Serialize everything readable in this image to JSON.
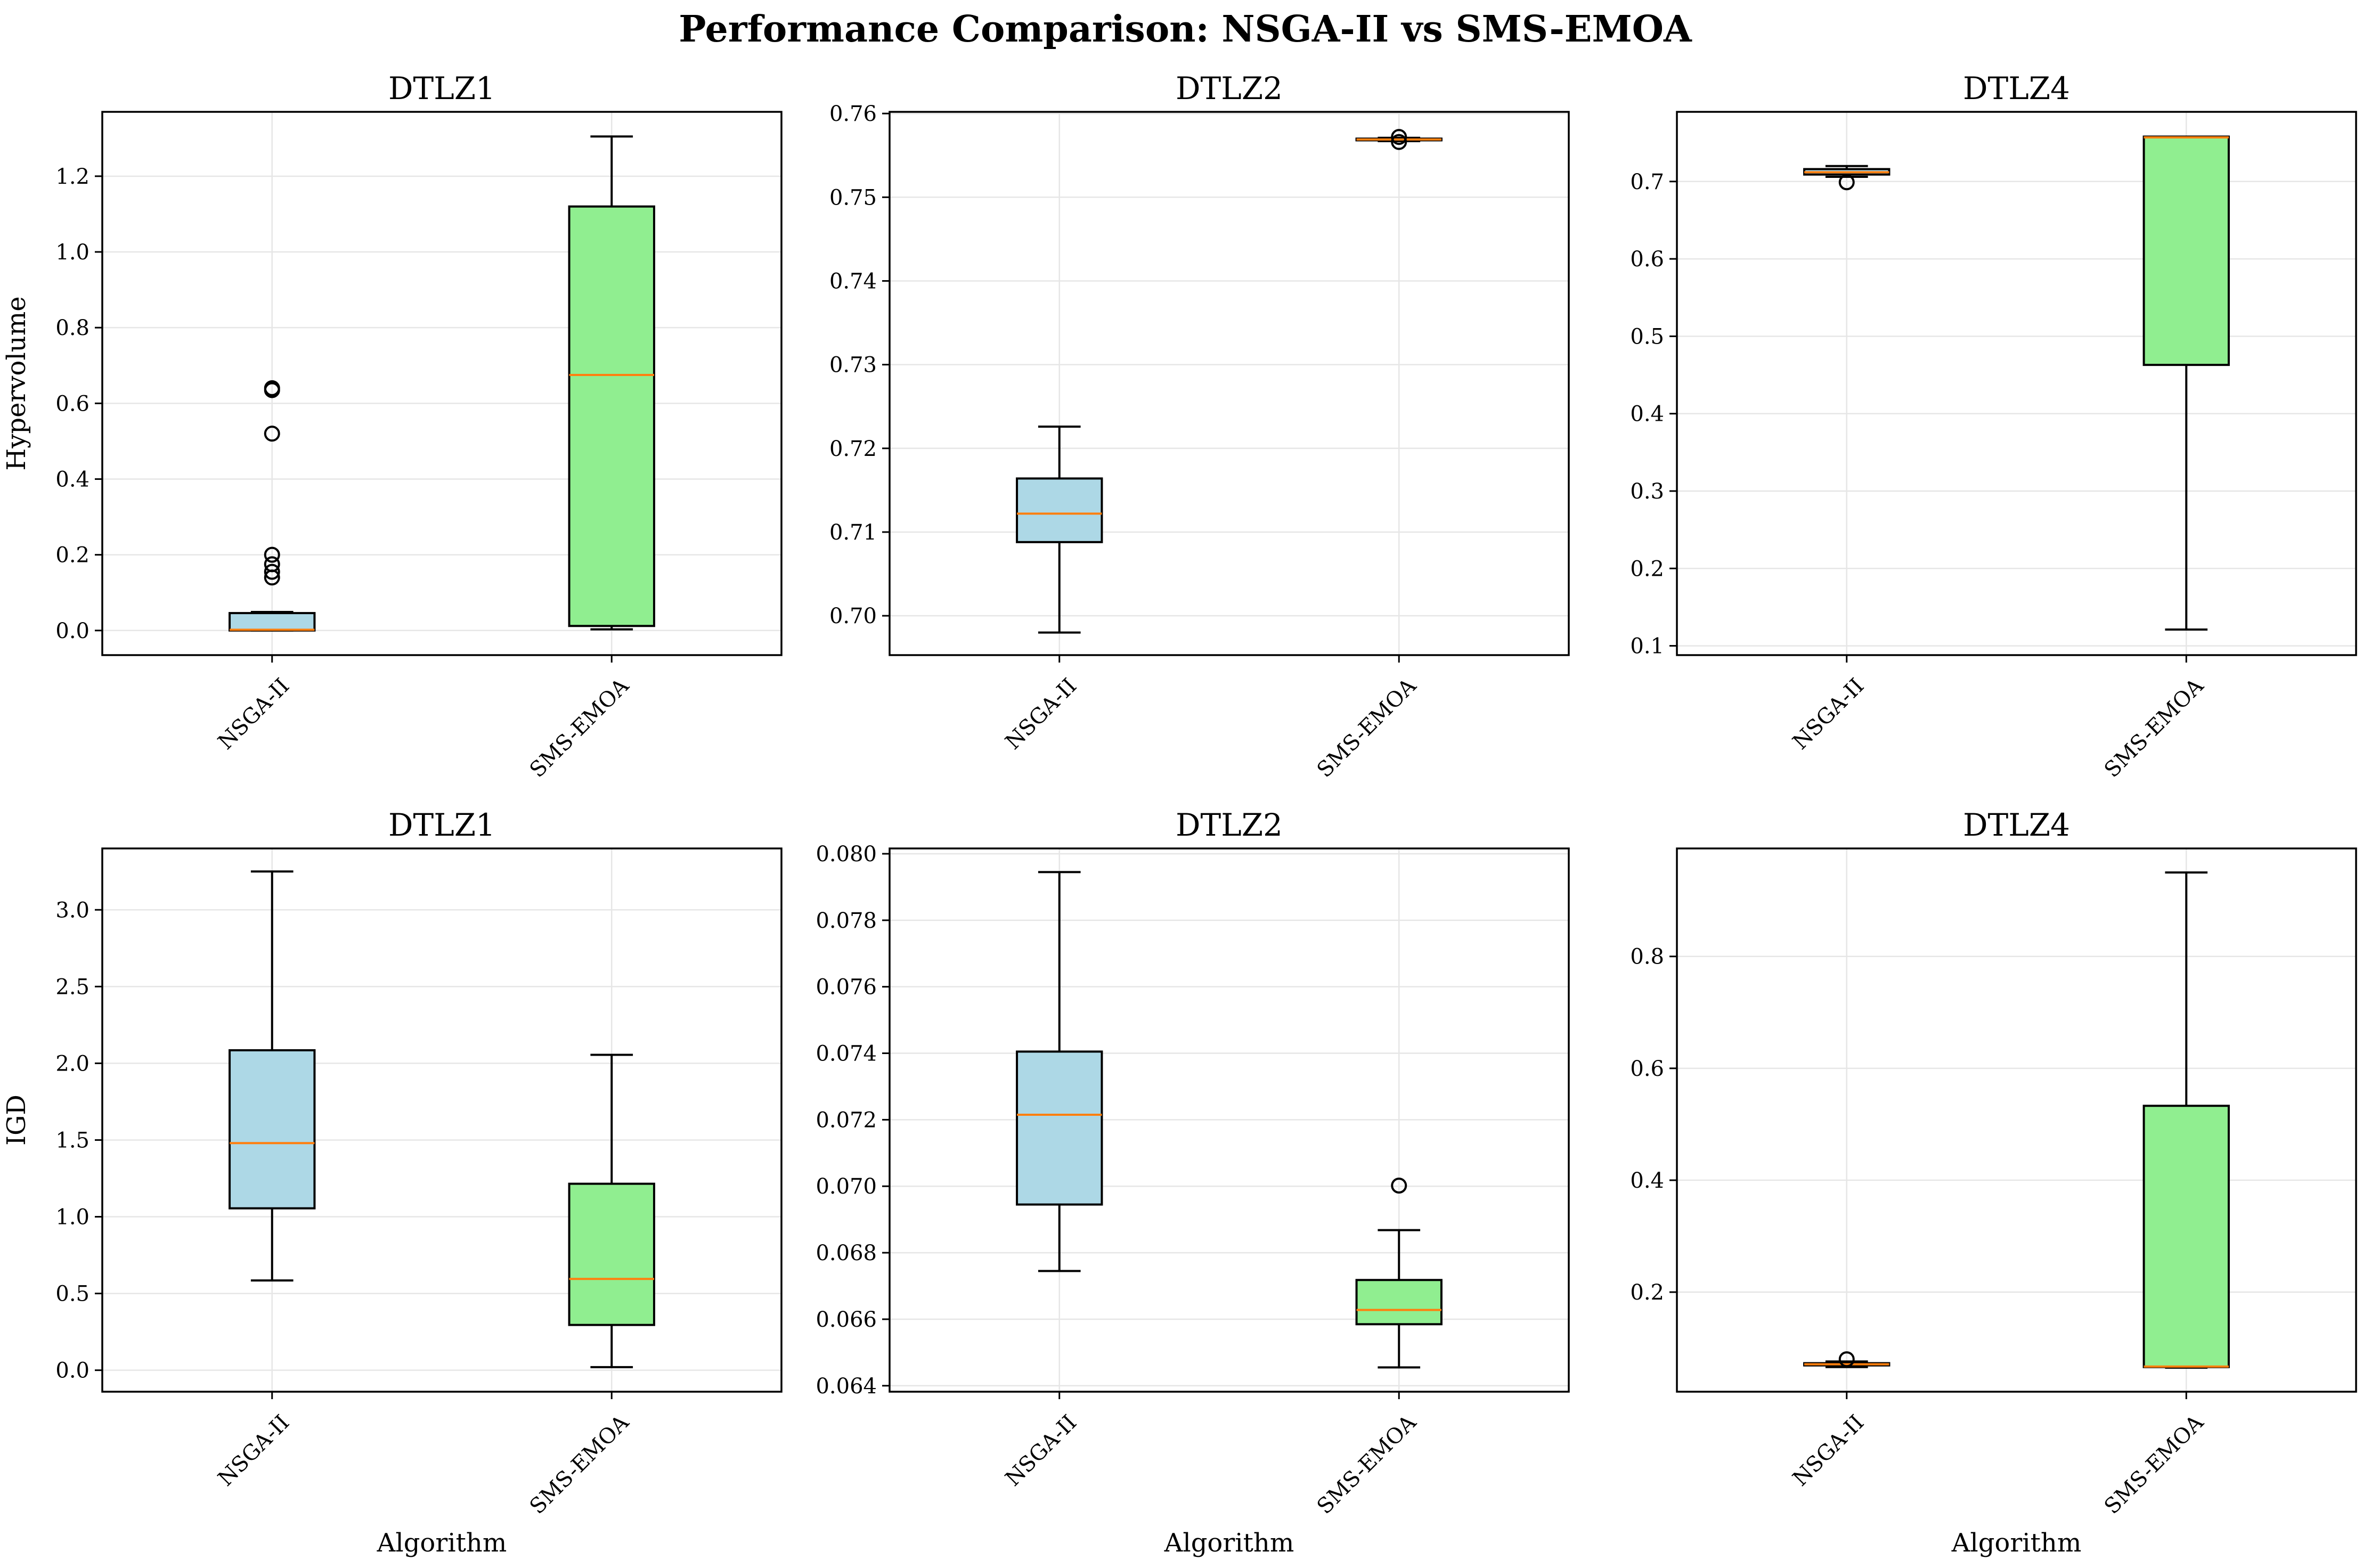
{
  "title": "Performance Comparison: NSGA-II vs SMS-EMOA",
  "colors": {
    "NSGA-II": "#add8e6",
    "SMS-EMOA": "#90ee90",
    "median": "#ff7f0e"
  },
  "chart_data": [
    {
      "type": "box",
      "title": "DTLZ1",
      "ylabel": "Hypervolume",
      "xlabel": "",
      "categories": [
        "NSGA-II",
        "SMS-EMOA"
      ],
      "ylim": [
        -0.065,
        1.37
      ],
      "yticks": [
        0.0,
        0.2,
        0.4,
        0.6,
        0.8,
        1.0,
        1.2
      ],
      "ytick_decimals": 1,
      "boxes": [
        {
          "name": "NSGA-II",
          "whislo": 0.0,
          "q1": 0.0,
          "med": 0.002,
          "q3": 0.046,
          "whishi": 0.049,
          "fliers": [
            0.14,
            0.155,
            0.175,
            0.2,
            0.52,
            0.635,
            0.64
          ]
        },
        {
          "name": "SMS-EMOA",
          "whislo": 0.003,
          "q1": 0.012,
          "med": 0.675,
          "q3": 1.12,
          "whishi": 1.305,
          "fliers": []
        }
      ]
    },
    {
      "type": "box",
      "title": "DTLZ2",
      "ylabel": "",
      "xlabel": "",
      "categories": [
        "NSGA-II",
        "SMS-EMOA"
      ],
      "ylim": [
        0.6953,
        0.7602
      ],
      "yticks": [
        0.7,
        0.71,
        0.72,
        0.73,
        0.74,
        0.75,
        0.76
      ],
      "ytick_decimals": 2,
      "boxes": [
        {
          "name": "NSGA-II",
          "whislo": 0.698,
          "q1": 0.7088,
          "med": 0.7122,
          "q3": 0.7164,
          "whishi": 0.7226,
          "fliers": []
        },
        {
          "name": "SMS-EMOA",
          "whislo": 0.7567,
          "q1": 0.7568,
          "med": 0.7569,
          "q3": 0.757,
          "whishi": 0.7571,
          "fliers": [
            0.7566,
            0.7572
          ]
        }
      ]
    },
    {
      "type": "box",
      "title": "DTLZ4",
      "ylabel": "",
      "xlabel": "",
      "categories": [
        "NSGA-II",
        "SMS-EMOA"
      ],
      "ylim": [
        0.088,
        0.79
      ],
      "yticks": [
        0.1,
        0.2,
        0.3,
        0.4,
        0.5,
        0.6,
        0.7
      ],
      "ytick_decimals": 1,
      "boxes": [
        {
          "name": "NSGA-II",
          "whislo": 0.706,
          "q1": 0.709,
          "med": 0.712,
          "q3": 0.716,
          "whishi": 0.72,
          "fliers": [
            0.699
          ]
        },
        {
          "name": "SMS-EMOA",
          "whislo": 0.121,
          "q1": 0.463,
          "med": 0.757,
          "q3": 0.758,
          "whishi": 0.758,
          "fliers": []
        }
      ]
    },
    {
      "type": "box",
      "title": "DTLZ1",
      "ylabel": "IGD",
      "xlabel": "Algorithm",
      "categories": [
        "NSGA-II",
        "SMS-EMOA"
      ],
      "ylim": [
        -0.14,
        3.4
      ],
      "yticks": [
        0.0,
        0.5,
        1.0,
        1.5,
        2.0,
        2.5,
        3.0
      ],
      "ytick_decimals": 1,
      "boxes": [
        {
          "name": "NSGA-II",
          "whislo": 0.585,
          "q1": 1.055,
          "med": 1.48,
          "q3": 2.085,
          "whishi": 3.25,
          "fliers": []
        },
        {
          "name": "SMS-EMOA",
          "whislo": 0.02,
          "q1": 0.295,
          "med": 0.595,
          "q3": 1.215,
          "whishi": 2.055,
          "fliers": []
        }
      ]
    },
    {
      "type": "box",
      "title": "DTLZ2",
      "ylabel": "",
      "xlabel": "Algorithm",
      "categories": [
        "NSGA-II",
        "SMS-EMOA"
      ],
      "ylim": [
        0.06382,
        0.08016
      ],
      "yticks": [
        0.064,
        0.066,
        0.068,
        0.07,
        0.072,
        0.074,
        0.076,
        0.078,
        0.08
      ],
      "ytick_decimals": 3,
      "boxes": [
        {
          "name": "NSGA-II",
          "whislo": 0.06745,
          "q1": 0.06945,
          "med": 0.07215,
          "q3": 0.07405,
          "whishi": 0.07945,
          "fliers": []
        },
        {
          "name": "SMS-EMOA",
          "whislo": 0.06455,
          "q1": 0.06585,
          "med": 0.06628,
          "q3": 0.06718,
          "whishi": 0.06868,
          "fliers": [
            0.07002
          ]
        }
      ]
    },
    {
      "type": "box",
      "title": "DTLZ4",
      "ylabel": "",
      "xlabel": "Algorithm",
      "categories": [
        "NSGA-II",
        "SMS-EMOA"
      ],
      "ylim": [
        0.022,
        0.993
      ],
      "yticks": [
        0.2,
        0.4,
        0.6,
        0.8
      ],
      "ytick_decimals": 1,
      "boxes": [
        {
          "name": "NSGA-II",
          "whislo": 0.066,
          "q1": 0.069,
          "med": 0.071,
          "q3": 0.073,
          "whishi": 0.076,
          "fliers": [
            0.08
          ]
        },
        {
          "name": "SMS-EMOA",
          "whislo": 0.065,
          "q1": 0.066,
          "med": 0.067,
          "q3": 0.533,
          "whishi": 0.95,
          "fliers": []
        }
      ]
    }
  ]
}
